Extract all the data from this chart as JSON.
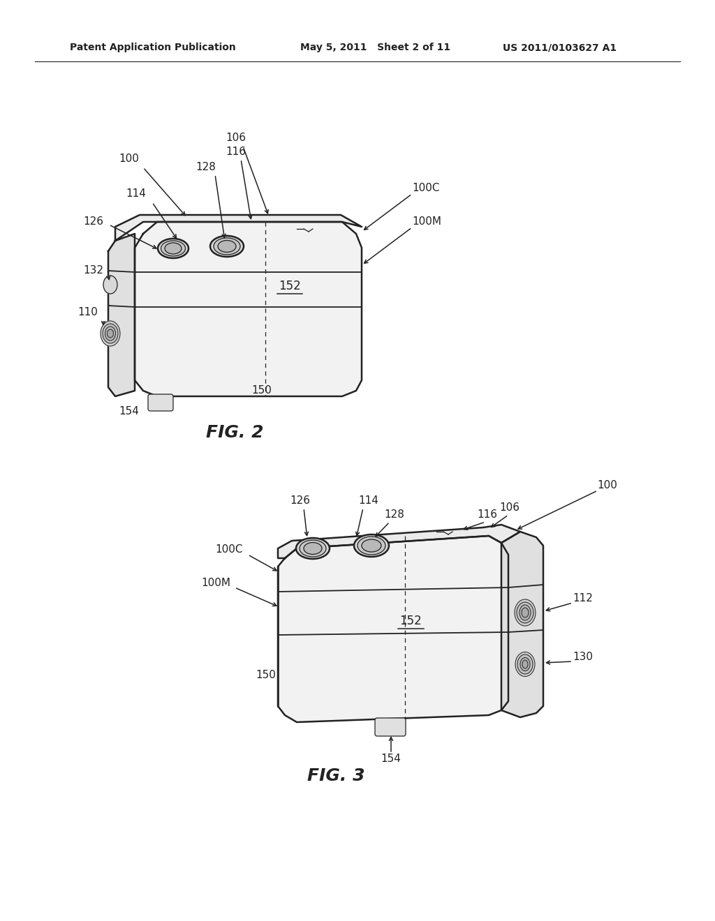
{
  "bg_color": "#ffffff",
  "header_left": "Patent Application Publication",
  "header_mid": "May 5, 2011   Sheet 2 of 11",
  "header_right": "US 2011/0103627 A1",
  "fig2_label": "FIG. 2",
  "fig3_label": "FIG. 3"
}
